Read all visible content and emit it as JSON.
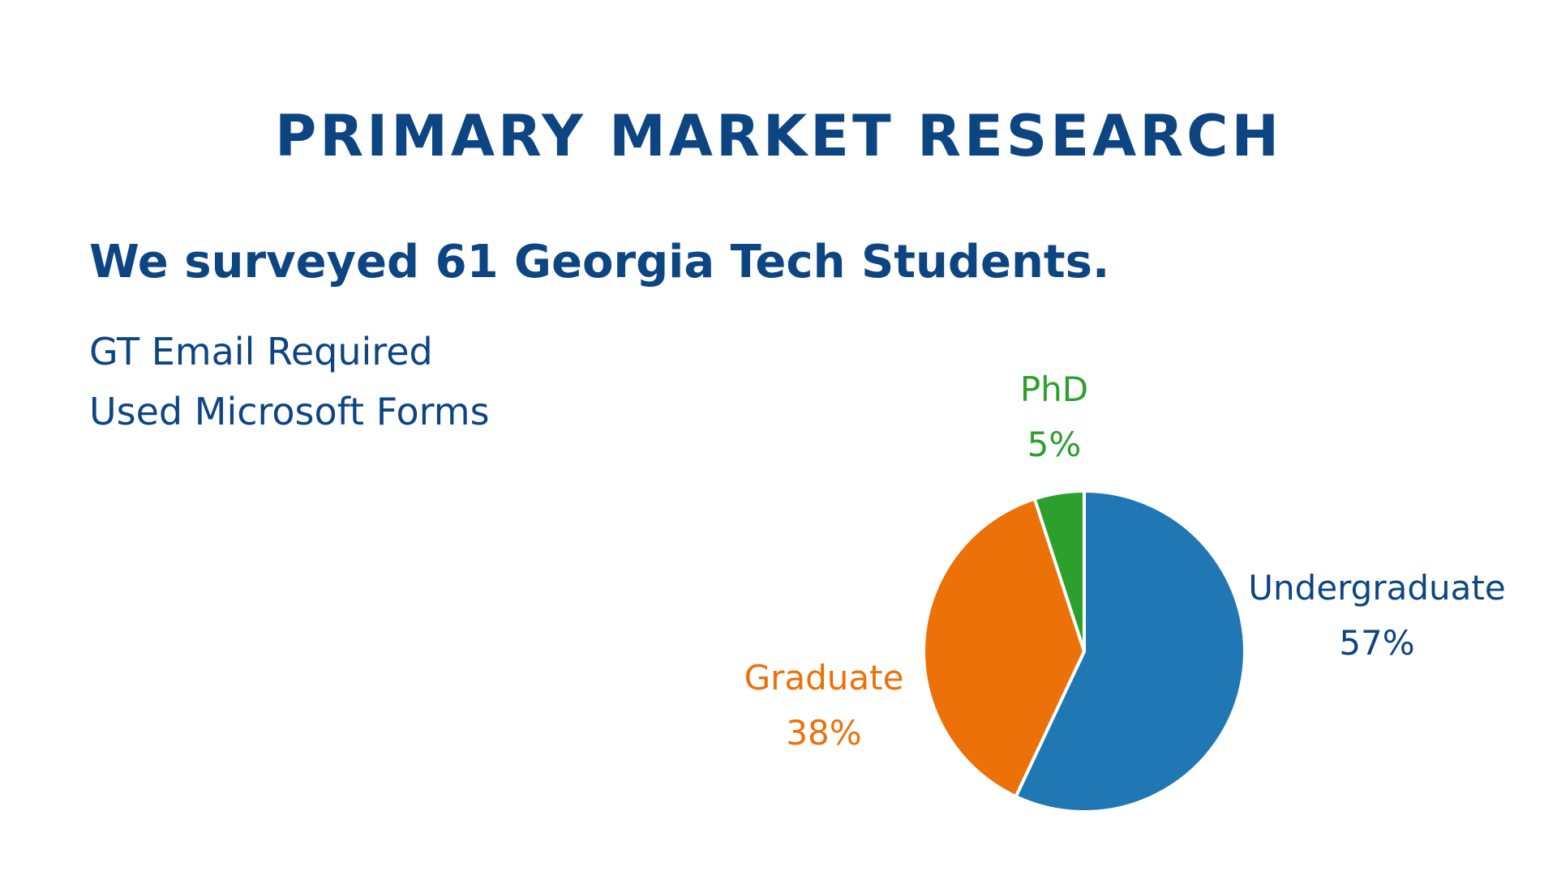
{
  "header": {
    "title": "PRIMARY MARKET RESEARCH"
  },
  "subtitle": "We surveyed 61 Georgia Tech Students.",
  "notes": [
    "GT Email Required",
    "Used Microsoft Forms"
  ],
  "chart_data": {
    "type": "pie",
    "categories": [
      "Undergraduate",
      "Graduate",
      "PhD"
    ],
    "values": [
      57,
      38,
      5
    ],
    "value_labels": [
      "57%",
      "38%",
      "5%"
    ],
    "colors": [
      "#1f77b4",
      "#ec7108",
      "#2ca02c"
    ],
    "label_colors": [
      "#0d4583",
      "#ec7108",
      "#2ca02c"
    ]
  }
}
